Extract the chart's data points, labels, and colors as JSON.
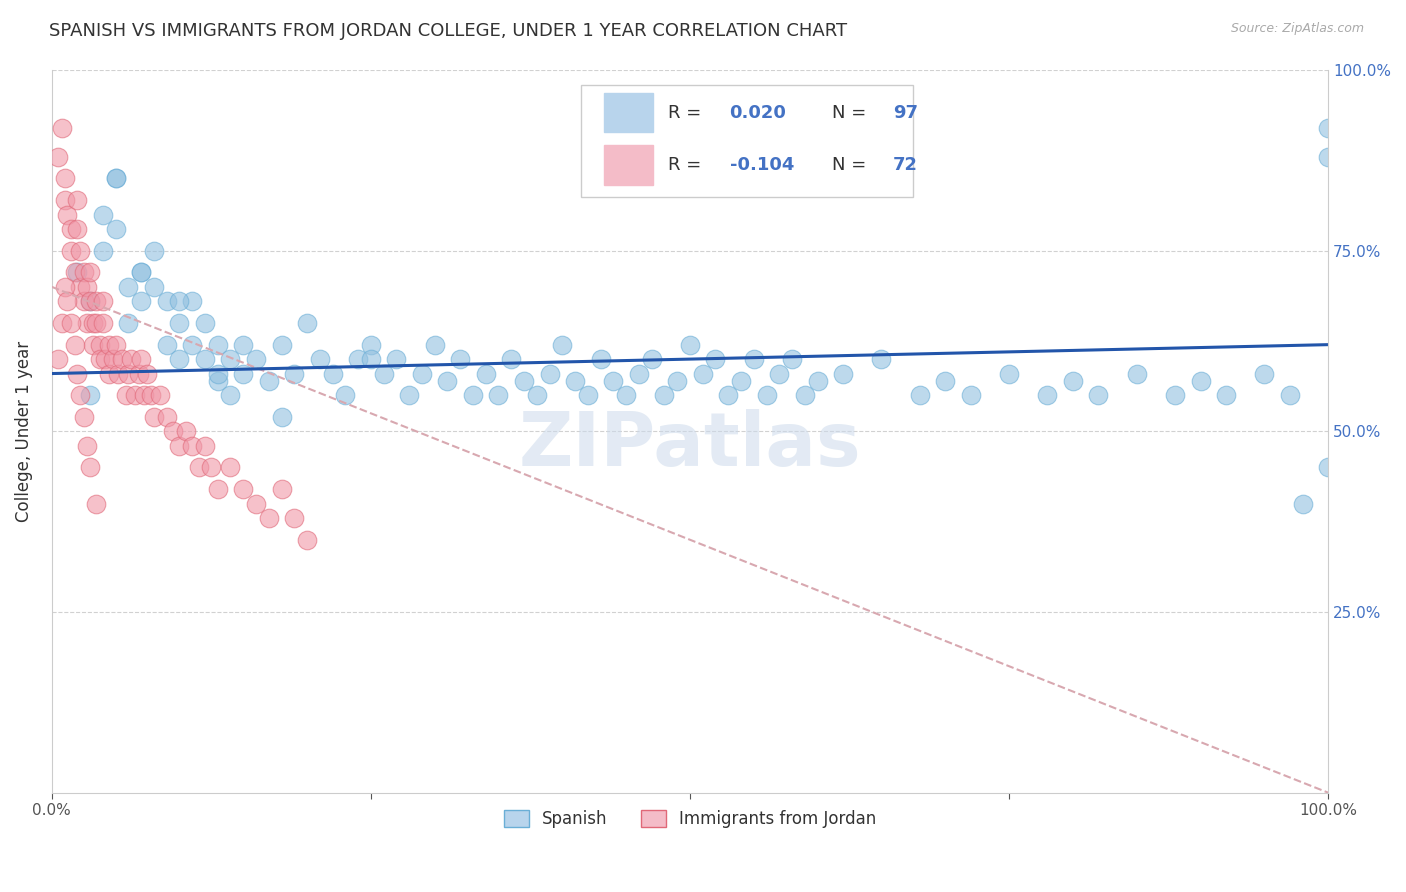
{
  "title": "SPANISH VS IMMIGRANTS FROM JORDAN COLLEGE, UNDER 1 YEAR CORRELATION CHART",
  "source": "Source: ZipAtlas.com",
  "ylabel": "College, Under 1 year",
  "xlim": [
    0.0,
    1.0
  ],
  "ylim": [
    0.0,
    1.0
  ],
  "xtick_labels": [
    "0.0%",
    "",
    "",
    "",
    "100.0%"
  ],
  "xtick_vals": [
    0.0,
    0.25,
    0.5,
    0.75,
    1.0
  ],
  "ytick_vals": [
    0.25,
    0.5,
    0.75,
    1.0
  ],
  "ytick_labels": [
    "25.0%",
    "50.0%",
    "75.0%",
    "100.0%"
  ],
  "R_spanish": 0.02,
  "N_spanish": 97,
  "R_jordan": -0.104,
  "N_jordan": 72,
  "blue_color": "#92c0e0",
  "pink_color": "#f098a8",
  "blue_edge": "#6aaed6",
  "pink_edge": "#e06878",
  "trend_blue": "#2255aa",
  "trend_pink": "#d8a8b0",
  "watermark": "ZIPatlas",
  "background_color": "#ffffff",
  "grid_color": "#cccccc",
  "legend_blue_fill": "#b8d4ec",
  "legend_pink_fill": "#f4bcc8",
  "spanish_x": [
    0.02,
    0.03,
    0.04,
    0.04,
    0.05,
    0.05,
    0.06,
    0.06,
    0.07,
    0.07,
    0.08,
    0.08,
    0.09,
    0.09,
    0.1,
    0.1,
    0.11,
    0.11,
    0.12,
    0.12,
    0.13,
    0.13,
    0.14,
    0.14,
    0.15,
    0.15,
    0.16,
    0.17,
    0.18,
    0.19,
    0.2,
    0.21,
    0.22,
    0.23,
    0.24,
    0.25,
    0.26,
    0.27,
    0.28,
    0.29,
    0.3,
    0.31,
    0.32,
    0.33,
    0.34,
    0.35,
    0.36,
    0.37,
    0.38,
    0.39,
    0.4,
    0.41,
    0.42,
    0.43,
    0.44,
    0.45,
    0.46,
    0.47,
    0.48,
    0.49,
    0.5,
    0.51,
    0.52,
    0.53,
    0.54,
    0.55,
    0.56,
    0.57,
    0.58,
    0.59,
    0.6,
    0.62,
    0.65,
    0.68,
    0.7,
    0.72,
    0.75,
    0.78,
    0.8,
    0.82,
    0.85,
    0.88,
    0.9,
    0.92,
    0.95,
    0.97,
    0.98,
    1.0,
    1.0,
    1.0,
    0.03,
    0.05,
    0.07,
    0.1,
    0.13,
    0.18,
    0.25
  ],
  "spanish_y": [
    0.72,
    0.68,
    0.8,
    0.75,
    0.85,
    0.78,
    0.7,
    0.65,
    0.72,
    0.68,
    0.75,
    0.7,
    0.68,
    0.62,
    0.65,
    0.6,
    0.68,
    0.62,
    0.65,
    0.6,
    0.62,
    0.57,
    0.6,
    0.55,
    0.62,
    0.58,
    0.6,
    0.57,
    0.62,
    0.58,
    0.65,
    0.6,
    0.58,
    0.55,
    0.6,
    0.62,
    0.58,
    0.6,
    0.55,
    0.58,
    0.62,
    0.57,
    0.6,
    0.55,
    0.58,
    0.55,
    0.6,
    0.57,
    0.55,
    0.58,
    0.62,
    0.57,
    0.55,
    0.6,
    0.57,
    0.55,
    0.58,
    0.6,
    0.55,
    0.57,
    0.62,
    0.58,
    0.6,
    0.55,
    0.57,
    0.6,
    0.55,
    0.58,
    0.6,
    0.55,
    0.57,
    0.58,
    0.6,
    0.55,
    0.57,
    0.55,
    0.58,
    0.55,
    0.57,
    0.55,
    0.58,
    0.55,
    0.57,
    0.55,
    0.58,
    0.55,
    0.4,
    0.45,
    0.92,
    0.88,
    0.55,
    0.85,
    0.72,
    0.68,
    0.58,
    0.52,
    0.6
  ],
  "jordan_x": [
    0.005,
    0.008,
    0.01,
    0.01,
    0.012,
    0.015,
    0.015,
    0.018,
    0.02,
    0.02,
    0.022,
    0.022,
    0.025,
    0.025,
    0.028,
    0.028,
    0.03,
    0.03,
    0.032,
    0.032,
    0.035,
    0.035,
    0.038,
    0.038,
    0.04,
    0.04,
    0.042,
    0.045,
    0.045,
    0.048,
    0.05,
    0.052,
    0.055,
    0.058,
    0.06,
    0.062,
    0.065,
    0.068,
    0.07,
    0.072,
    0.075,
    0.078,
    0.08,
    0.085,
    0.09,
    0.095,
    0.1,
    0.105,
    0.11,
    0.115,
    0.12,
    0.125,
    0.13,
    0.14,
    0.15,
    0.16,
    0.17,
    0.18,
    0.19,
    0.2,
    0.005,
    0.008,
    0.01,
    0.012,
    0.015,
    0.018,
    0.02,
    0.022,
    0.025,
    0.028,
    0.03,
    0.035
  ],
  "jordan_y": [
    0.88,
    0.92,
    0.82,
    0.85,
    0.8,
    0.78,
    0.75,
    0.72,
    0.78,
    0.82,
    0.75,
    0.7,
    0.72,
    0.68,
    0.7,
    0.65,
    0.68,
    0.72,
    0.65,
    0.62,
    0.68,
    0.65,
    0.62,
    0.6,
    0.65,
    0.68,
    0.6,
    0.62,
    0.58,
    0.6,
    0.62,
    0.58,
    0.6,
    0.55,
    0.58,
    0.6,
    0.55,
    0.58,
    0.6,
    0.55,
    0.58,
    0.55,
    0.52,
    0.55,
    0.52,
    0.5,
    0.48,
    0.5,
    0.48,
    0.45,
    0.48,
    0.45,
    0.42,
    0.45,
    0.42,
    0.4,
    0.38,
    0.42,
    0.38,
    0.35,
    0.6,
    0.65,
    0.7,
    0.68,
    0.65,
    0.62,
    0.58,
    0.55,
    0.52,
    0.48,
    0.45,
    0.4
  ]
}
